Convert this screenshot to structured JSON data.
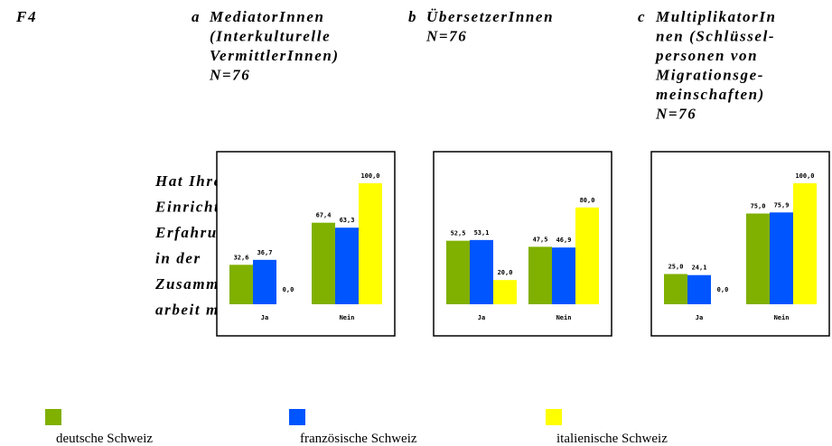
{
  "figure_label": "F4",
  "question_lines": [
    "Hat Ihre",
    "Einrichtung",
    "Erfahrung",
    "in der",
    "Zusammen-",
    "arbeit mit:"
  ],
  "legend": [
    {
      "name": "deutsche Schweiz",
      "color": "#80b000"
    },
    {
      "name": "französische Schweiz",
      "color": "#0055ff"
    },
    {
      "name": "italienische Schweiz",
      "color": "#ffff00"
    }
  ],
  "chart_data": [
    {
      "type": "bar",
      "letter": "a",
      "title_lines": [
        "MediatorInnen",
        "(Interkulturelle",
        "VermittlerInnen)",
        "N=76"
      ],
      "categories": [
        "Ja",
        "Nein"
      ],
      "series": [
        {
          "values": [
            32.6,
            67.4
          ],
          "value_labels": [
            "32,6",
            "67,4"
          ]
        },
        {
          "values": [
            36.7,
            63.3
          ],
          "value_labels": [
            "36,7",
            "63,3"
          ]
        },
        {
          "values": [
            0.0,
            100.0
          ],
          "value_labels": [
            "0,0",
            "100,0"
          ]
        }
      ]
    },
    {
      "type": "bar",
      "letter": "b",
      "title_lines": [
        "ÜbersetzerInnen",
        "N=76"
      ],
      "categories": [
        "Ja",
        "Nein"
      ],
      "series": [
        {
          "values": [
            52.5,
            47.5
          ],
          "value_labels": [
            "52,5",
            "47,5"
          ]
        },
        {
          "values": [
            53.1,
            46.9
          ],
          "value_labels": [
            "53,1",
            "46,9"
          ]
        },
        {
          "values": [
            20.0,
            80.0
          ],
          "value_labels": [
            "20,0",
            "80,0"
          ]
        }
      ]
    },
    {
      "type": "bar",
      "letter": "c",
      "title_lines": [
        "MultiplikatorIn",
        "nen (Schlüssel-",
        "personen von",
        "Migrationsge-",
        "meinschaften)",
        "N=76"
      ],
      "categories": [
        "Ja",
        "Nein"
      ],
      "series": [
        {
          "values": [
            25.0,
            75.0
          ],
          "value_labels": [
            "25,0",
            "75,0"
          ]
        },
        {
          "values": [
            24.1,
            75.9
          ],
          "value_labels": [
            "24,1",
            "75,9"
          ]
        },
        {
          "values": [
            0.0,
            100.0
          ],
          "value_labels": [
            "0,0",
            "100,0"
          ]
        }
      ]
    }
  ]
}
